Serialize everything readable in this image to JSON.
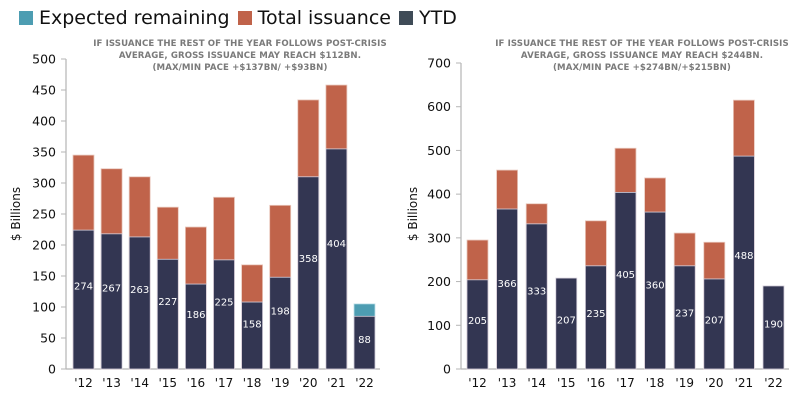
{
  "legend": [
    {
      "label": "Expected remaining",
      "color": "#4d9db2"
    },
    {
      "label": "Total issuance",
      "color": "#c0634a"
    },
    {
      "label": "YTD",
      "color": "#3f4b57"
    }
  ],
  "colors": {
    "ytd_bar": "#333652",
    "total_bar": "#c0634a",
    "expected_bar": "#4d9db2",
    "axis": "#b5b5b5",
    "bar_edge": "#e9c8bd"
  },
  "chart_data": [
    {
      "type": "bar",
      "stacked": true,
      "title": "",
      "subtitle": [
        "IF ISSUANCE THE REST OF THE YEAR FOLLOWS POST-CRISIS",
        "AVERAGE,  GROSS ISSUANCE MAY REACH $112BN.",
        "(MAX/MIN PACE +$137BN/ +$93BN)"
      ],
      "xlabel": "",
      "ylabel": "$ Billions",
      "ylim": [
        0,
        500
      ],
      "yticks": [
        0,
        50,
        100,
        150,
        200,
        250,
        300,
        350,
        400,
        450,
        500
      ],
      "grid": false,
      "legend_position": "top-left",
      "categories": [
        "'12",
        "'13",
        "'14",
        "'15",
        "'16",
        "'17",
        "'18",
        "'19",
        "'20",
        "'21",
        "'22"
      ],
      "series": [
        {
          "name": "YTD",
          "values": [
            224,
            218,
            213,
            177,
            137,
            176,
            108,
            148,
            310,
            355,
            85
          ]
        },
        {
          "name": "Total issuance",
          "values": [
            345,
            323,
            310,
            261,
            229,
            277,
            168,
            264,
            434,
            458,
            null
          ]
        },
        {
          "name": "Expected remaining",
          "values": [
            null,
            null,
            null,
            null,
            null,
            null,
            null,
            null,
            null,
            null,
            105
          ]
        }
      ],
      "data_labels": [
        "274",
        "267",
        "263",
        "227",
        "186",
        "225",
        "158",
        "198",
        "358",
        "404",
        "88"
      ],
      "data_label_values": [
        274,
        267,
        263,
        227,
        186,
        225,
        158,
        198,
        358,
        404,
        88
      ]
    },
    {
      "type": "bar",
      "stacked": true,
      "title": "",
      "subtitle": [
        "IF ISSUANCE THE REST OF THE YEAR FOLLOWS POST-CRISIS",
        "AVERAGE, GROSS ISSUANCE MAY REACH $244BN.",
        "(MAX/MIN PACE  +$274BN/+$215BN)"
      ],
      "xlabel": "",
      "ylabel": "$ Billions",
      "ylim": [
        0,
        700
      ],
      "yticks": [
        0,
        100,
        200,
        300,
        400,
        500,
        600,
        700
      ],
      "grid": false,
      "categories": [
        "'12",
        "'13",
        "'14",
        "'15",
        "'16",
        "'17",
        "'18",
        "'19",
        "'20",
        "'21",
        "'22"
      ],
      "series": [
        {
          "name": "YTD",
          "values": [
            204,
            366,
            332,
            208,
            236,
            404,
            359,
            236,
            206,
            487,
            190
          ]
        },
        {
          "name": "Total issuance",
          "values": [
            295,
            455,
            378,
            null,
            339,
            505,
            437,
            311,
            290,
            615,
            null
          ]
        },
        {
          "name": "Expected remaining",
          "values": [
            null,
            null,
            null,
            null,
            null,
            null,
            null,
            null,
            null,
            null,
            null
          ]
        }
      ],
      "data_labels": [
        "205",
        "366",
        "333",
        "207",
        "235",
        "405",
        "360",
        "237",
        "207",
        "488",
        "190"
      ],
      "data_label_values": [
        205,
        366,
        333,
        207,
        235,
        405,
        360,
        237,
        207,
        488,
        190
      ]
    }
  ]
}
